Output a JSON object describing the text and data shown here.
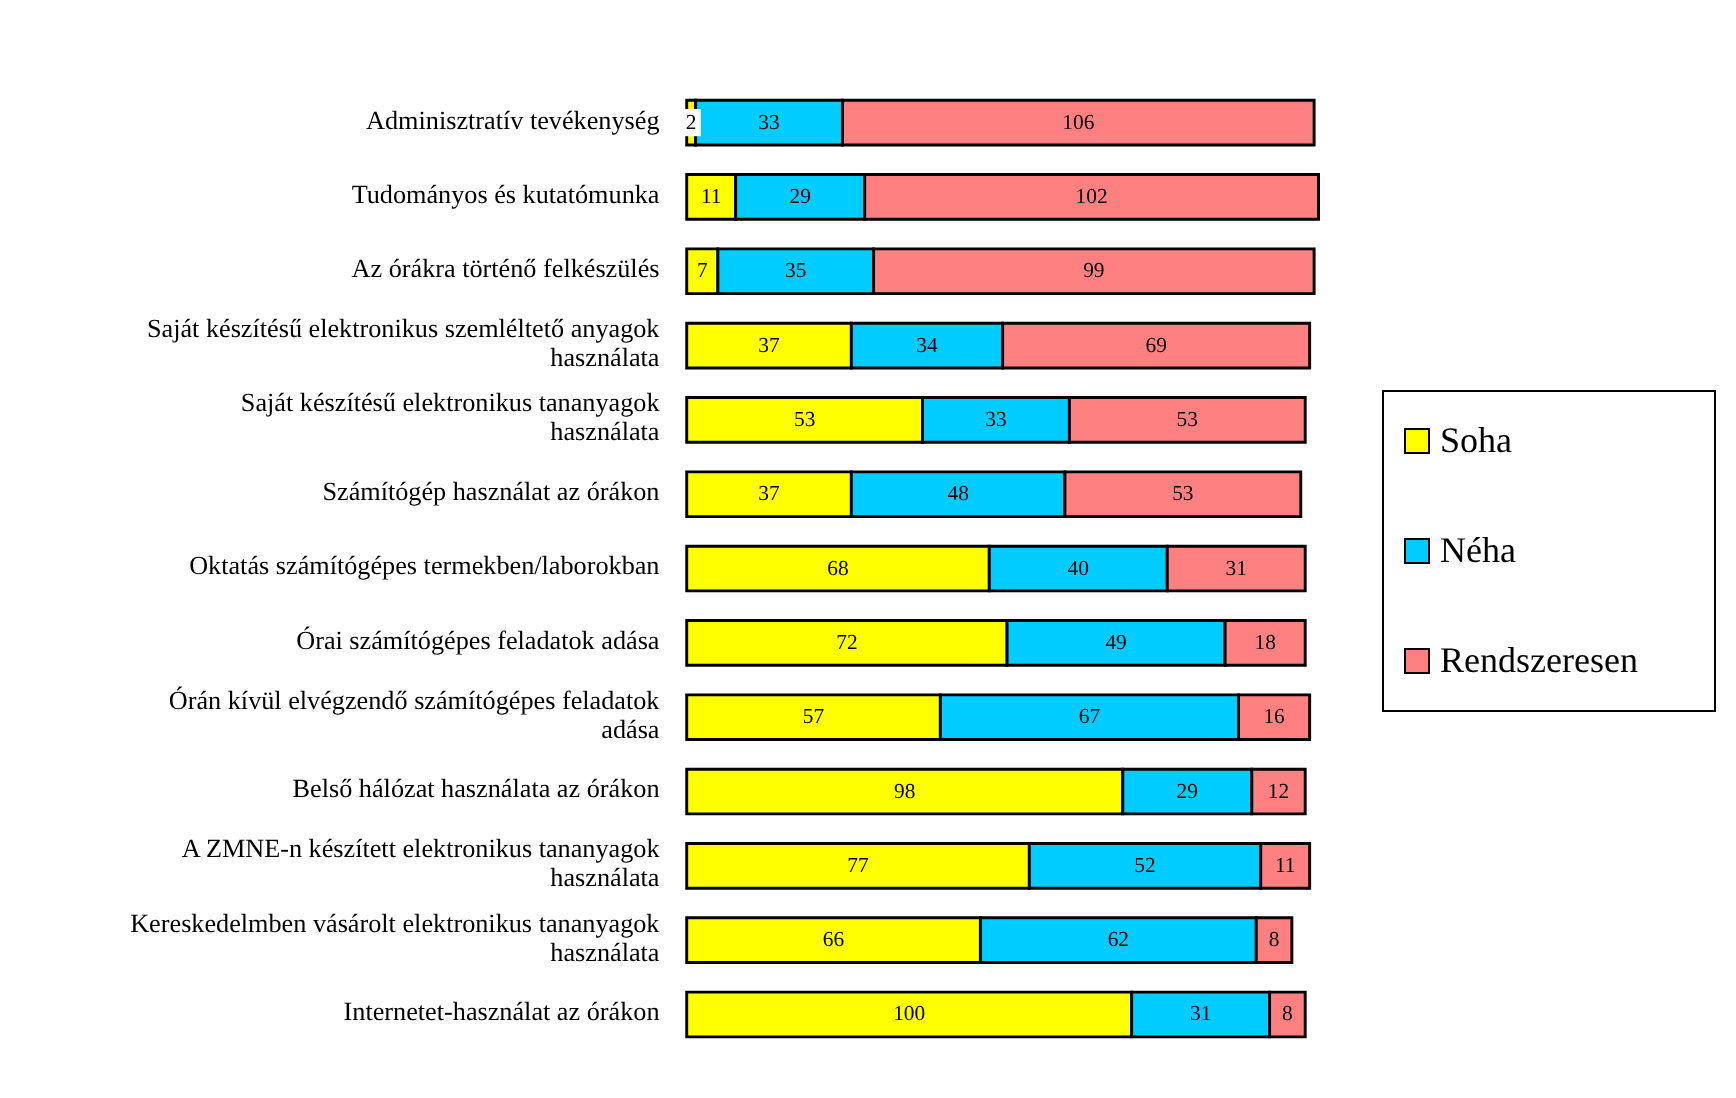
{
  "chart_data": {
    "type": "bar",
    "orientation": "horizontal",
    "stacked": true,
    "data_labels": true,
    "legend": "right",
    "tick_labels": "y",
    "categories": [
      "Adminisztratív tevékenység",
      "Tudományos és kutatómunka",
      "Az órákra történő felkészülés",
      "Saját készítésű elektronikus szemléltető anyagok használata",
      "Saját készítésű elektronikus tananyagok használata",
      "Számítógép használat az órákon",
      "Oktatás számítógépes termekben/laborokban",
      "Órai számítógépes feladatok adása",
      "Órán kívül elvégzendő számítógépes feladatok adása",
      "Belső hálózat használata az órákon",
      "A ZMNE-n készített elektronikus tananyagok használata",
      "Kereskedelmben vásárolt elektronikus tananyagok használata",
      "Internetet-használat az órákon"
    ],
    "series": [
      {
        "name": "Soha",
        "color": "#ffff00",
        "values": [
          2,
          11,
          7,
          37,
          53,
          37,
          68,
          72,
          57,
          98,
          77,
          66,
          100
        ]
      },
      {
        "name": "Néha",
        "color": "#00ccff",
        "values": [
          33,
          29,
          35,
          34,
          33,
          48,
          40,
          49,
          67,
          29,
          52,
          62,
          31
        ]
      },
      {
        "name": "Rendszeresen",
        "color": "#ff8080",
        "values": [
          106,
          102,
          99,
          69,
          53,
          53,
          31,
          18,
          16,
          12,
          11,
          8,
          8
        ]
      }
    ]
  }
}
